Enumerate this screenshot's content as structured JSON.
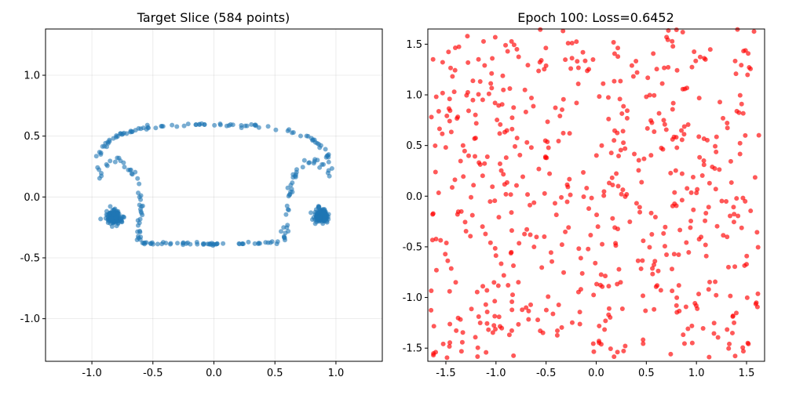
{
  "charts": [
    {
      "title": "Target Slice (584 points)",
      "color": "#1f77b4",
      "opacity": 0.6,
      "chart_data": {
        "type": "scatter",
        "title": "Target Slice (584 points)",
        "xlabel": "",
        "ylabel": "",
        "xlim": [
          -1.38,
          1.38
        ],
        "ylim": [
          -1.35,
          1.38
        ],
        "xticks": [
          "-1.0",
          "-0.5",
          "0.0",
          "0.5",
          "1.0"
        ],
        "xtick_values": [
          -1.0,
          -0.5,
          0.0,
          0.5,
          1.0
        ],
        "yticks": [
          "-1.0",
          "-0.5",
          "0.0",
          "0.5",
          "1.0"
        ],
        "ytick_values": [
          -1.0,
          -0.5,
          0.0,
          0.5,
          1.0
        ],
        "grid": true,
        "point_count": 584,
        "shape_description_points": {
          "top_arc": [
            [
              -0.95,
              0.3
            ],
            [
              -0.92,
              0.4
            ],
            [
              -0.85,
              0.47
            ],
            [
              -0.75,
              0.52
            ],
            [
              -0.6,
              0.56
            ],
            [
              -0.4,
              0.58
            ],
            [
              -0.2,
              0.59
            ],
            [
              0.0,
              0.595
            ],
            [
              0.2,
              0.59
            ],
            [
              0.4,
              0.58
            ],
            [
              0.6,
              0.55
            ],
            [
              0.75,
              0.5
            ],
            [
              0.85,
              0.45
            ],
            [
              0.92,
              0.38
            ],
            [
              0.95,
              0.28
            ]
          ],
          "left_inner": [
            [
              -0.95,
              0.25
            ],
            [
              -0.95,
              0.15
            ],
            [
              -0.85,
              0.3
            ],
            [
              -0.75,
              0.3
            ],
            [
              -0.68,
              0.22
            ],
            [
              -0.62,
              0.12
            ],
            [
              -0.6,
              0.0
            ],
            [
              -0.6,
              -0.12
            ],
            [
              -0.62,
              -0.25
            ],
            [
              -0.62,
              -0.35
            ]
          ],
          "right_inner": [
            [
              0.95,
              0.25
            ],
            [
              0.95,
              0.15
            ],
            [
              0.85,
              0.3
            ],
            [
              0.75,
              0.28
            ],
            [
              0.68,
              0.2
            ],
            [
              0.64,
              0.1
            ],
            [
              0.62,
              0.0
            ],
            [
              0.6,
              -0.12
            ],
            [
              0.58,
              -0.25
            ],
            [
              0.58,
              -0.35
            ]
          ],
          "bottom": [
            [
              -0.6,
              -0.38
            ],
            [
              -0.4,
              -0.38
            ],
            [
              -0.2,
              -0.385
            ],
            [
              0.0,
              -0.385
            ],
            [
              0.2,
              -0.385
            ],
            [
              0.4,
              -0.38
            ],
            [
              0.55,
              -0.37
            ]
          ],
          "left_cluster_center": [
            -0.82,
            -0.165
          ],
          "right_cluster_center": [
            0.88,
            -0.155
          ]
        }
      }
    },
    {
      "title": "Epoch 100: Loss=0.6452",
      "color": "#ff0000",
      "opacity": 0.65,
      "chart_data": {
        "type": "scatter",
        "title": "Epoch 100: Loss=0.6452",
        "xlabel": "",
        "ylabel": "",
        "xlim": [
          -1.68,
          1.68
        ],
        "ylim": [
          -1.63,
          1.65
        ],
        "xticks": [
          "-1.5",
          "-1.0",
          "-0.5",
          "0.0",
          "0.5",
          "1.0",
          "1.5"
        ],
        "xtick_values": [
          -1.5,
          -1.0,
          -0.5,
          0.0,
          0.5,
          1.0,
          1.5
        ],
        "yticks": [
          "-1.5",
          "-1.0",
          "-0.5",
          "0.0",
          "0.5",
          "1.0",
          "1.5"
        ],
        "ytick_values": [
          -1.5,
          -1.0,
          -0.5,
          0.0,
          0.5,
          1.0,
          1.5
        ],
        "grid": false,
        "point_count": 584,
        "distribution": "uniform-random within approx [-1.65,1.65] x [-1.6,1.65]"
      }
    }
  ]
}
